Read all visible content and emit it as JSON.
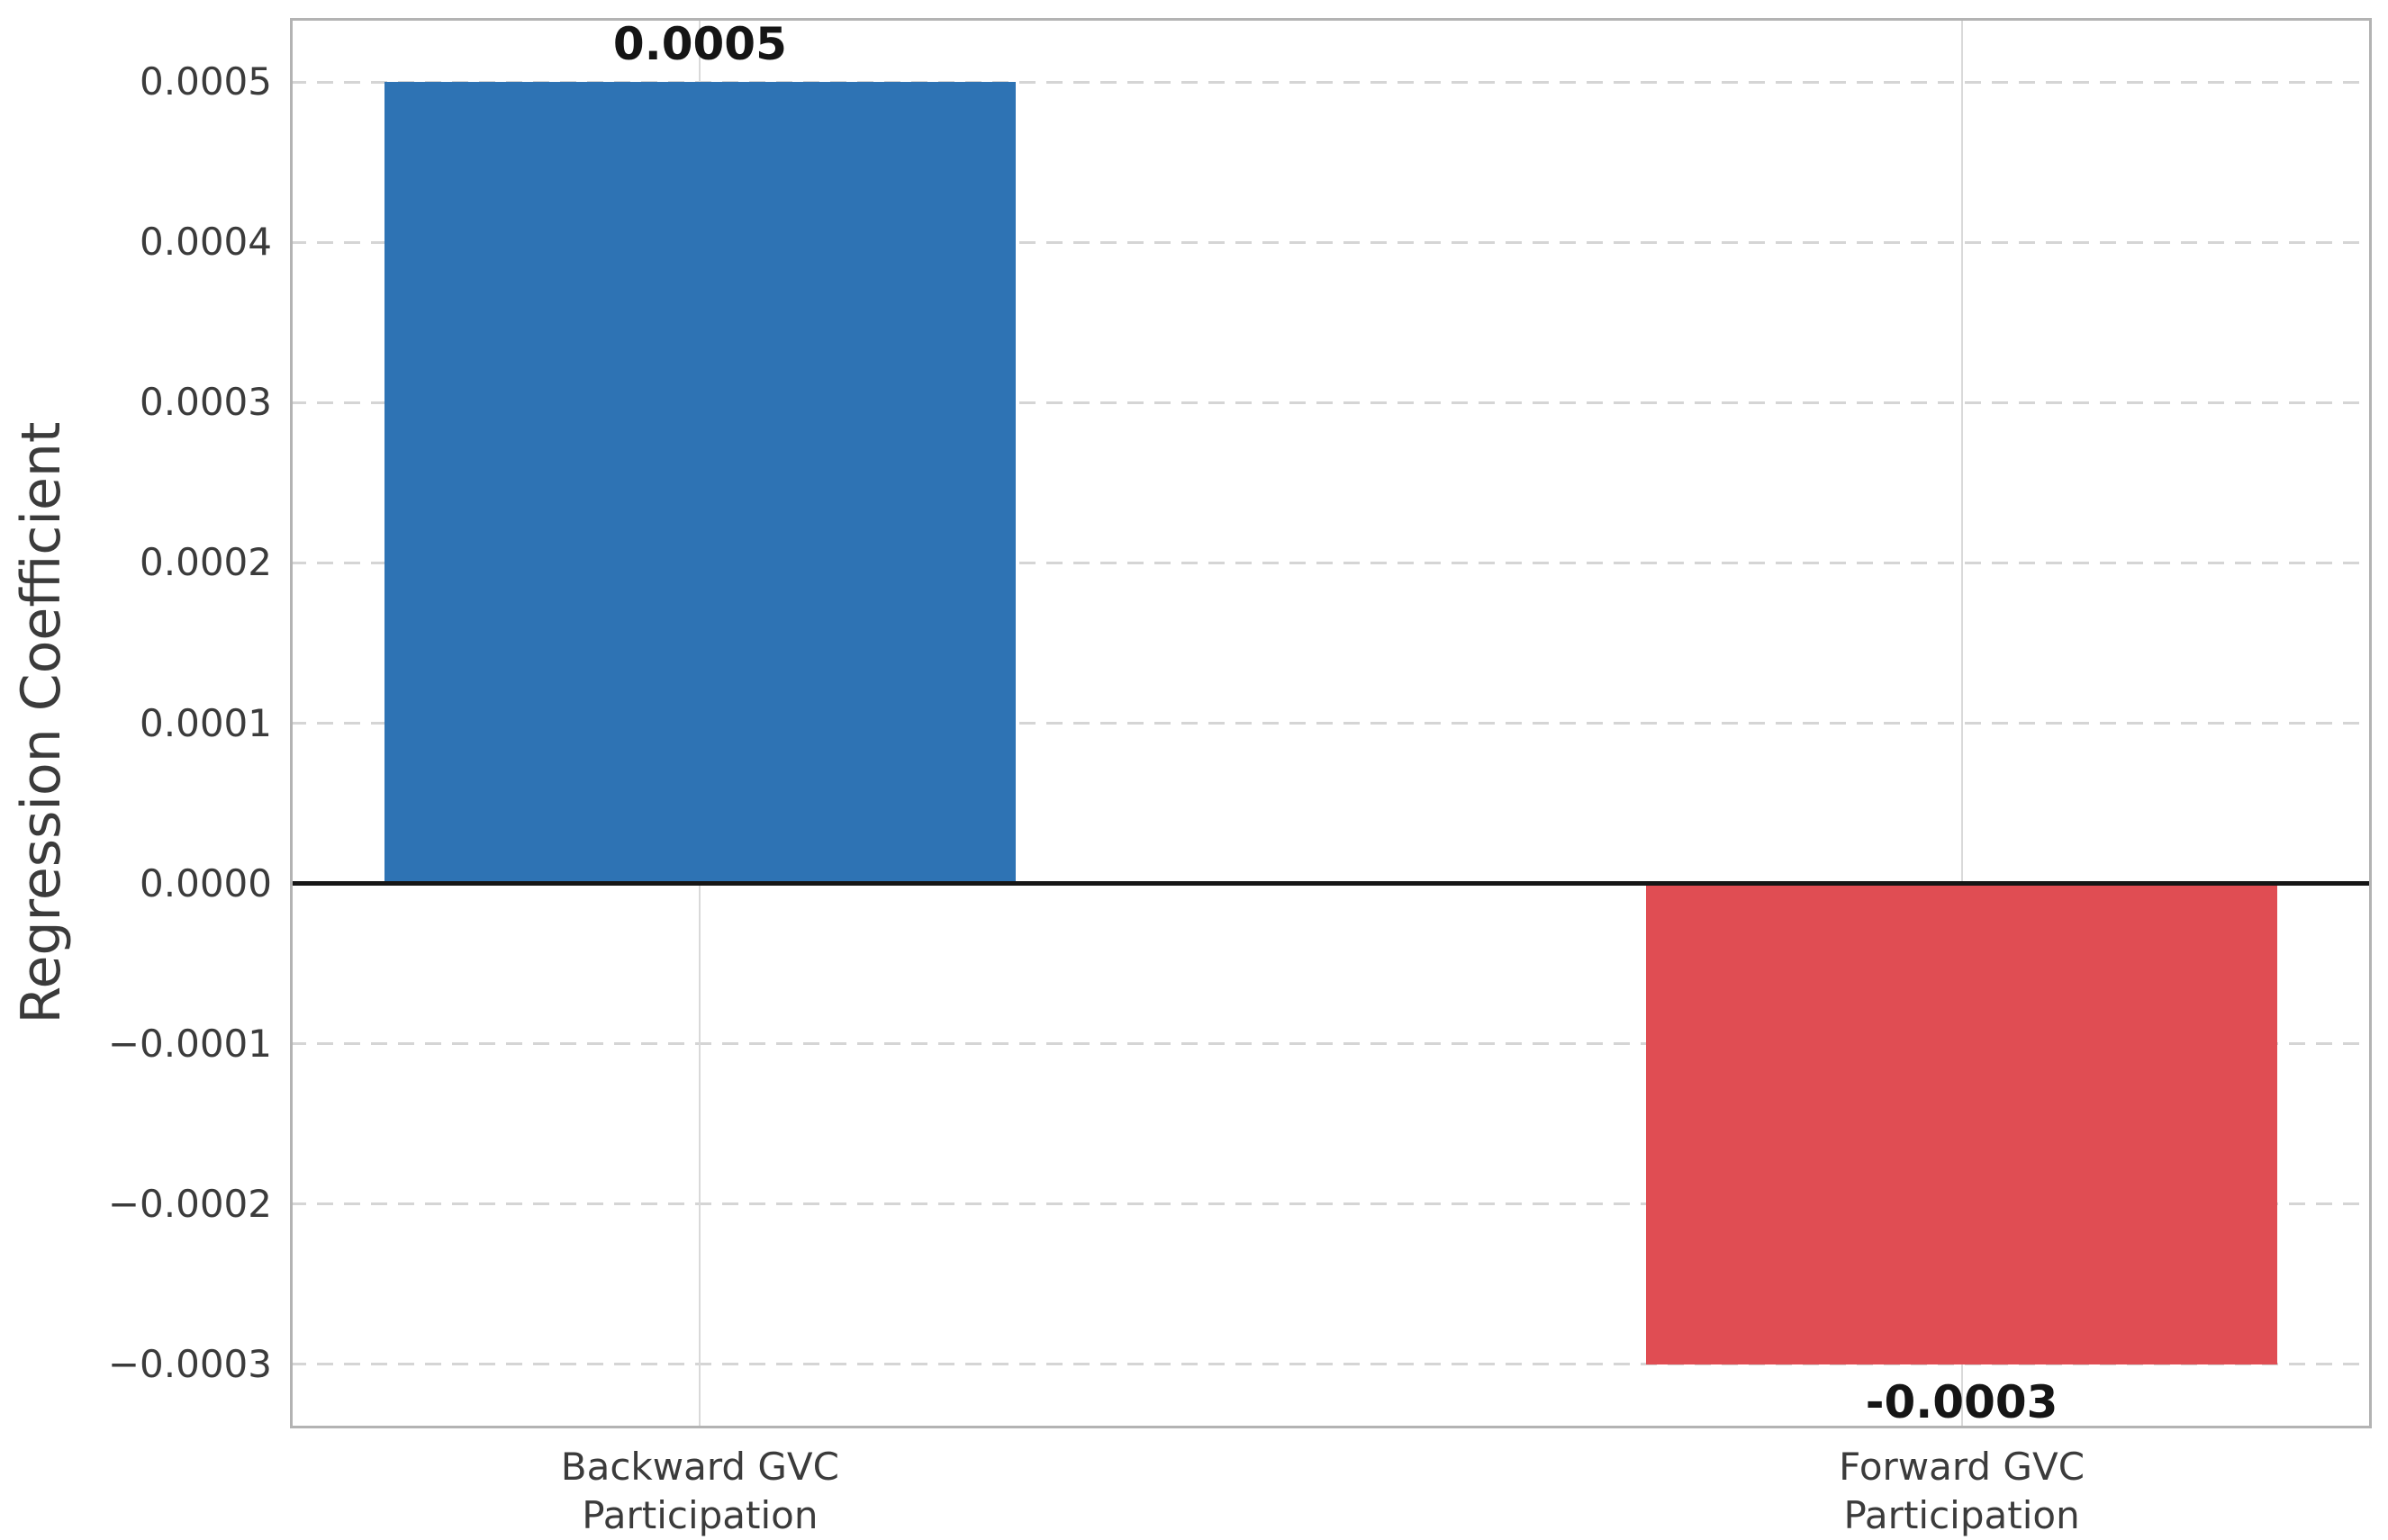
{
  "chart_data": {
    "type": "bar",
    "title": "",
    "xlabel": "",
    "ylabel": "Regression Coefficient",
    "categories": [
      "Backward GVC Participation",
      "Forward GVC Participation"
    ],
    "category_lines": [
      [
        "Backward GVC",
        "Participation"
      ],
      [
        "Forward GVC",
        "Participation"
      ]
    ],
    "values": [
      0.0005,
      -0.0003
    ],
    "bar_labels": [
      "0.0005",
      "-0.0003"
    ],
    "bar_colors": [
      "#2e73b4",
      "#e04d53"
    ],
    "x_positions": [
      0,
      1
    ],
    "bar_width": 0.5,
    "xlim": [
      -0.325,
      1.325
    ],
    "ylim": [
      -0.00034,
      0.00054
    ],
    "yticks": [
      {
        "value": 0.0005,
        "label": "0.0005"
      },
      {
        "value": 0.0004,
        "label": "0.0004"
      },
      {
        "value": 0.0003,
        "label": "0.0003"
      },
      {
        "value": 0.0002,
        "label": "0.0002"
      },
      {
        "value": 0.0001,
        "label": "0.0001"
      },
      {
        "value": 0.0,
        "label": "0.0000"
      },
      {
        "value": -0.0001,
        "label": "−0.0001"
      },
      {
        "value": -0.0002,
        "label": "−0.0002"
      },
      {
        "value": -0.0003,
        "label": "−0.0003"
      }
    ],
    "grid": {
      "visible": true,
      "horizontal_style": "dashed",
      "vertical_style": "solid"
    },
    "legend": "none",
    "zero_line": true
  },
  "style": {
    "background": "#ffffff",
    "text_color": "#3b3b3b",
    "bar_label_color": "#151515",
    "hgrid_color": "#d5d5d5",
    "vgrid_color": "#d9d9d9",
    "spine_color": "#b3b3b3",
    "zero_line_color": "#161616"
  }
}
